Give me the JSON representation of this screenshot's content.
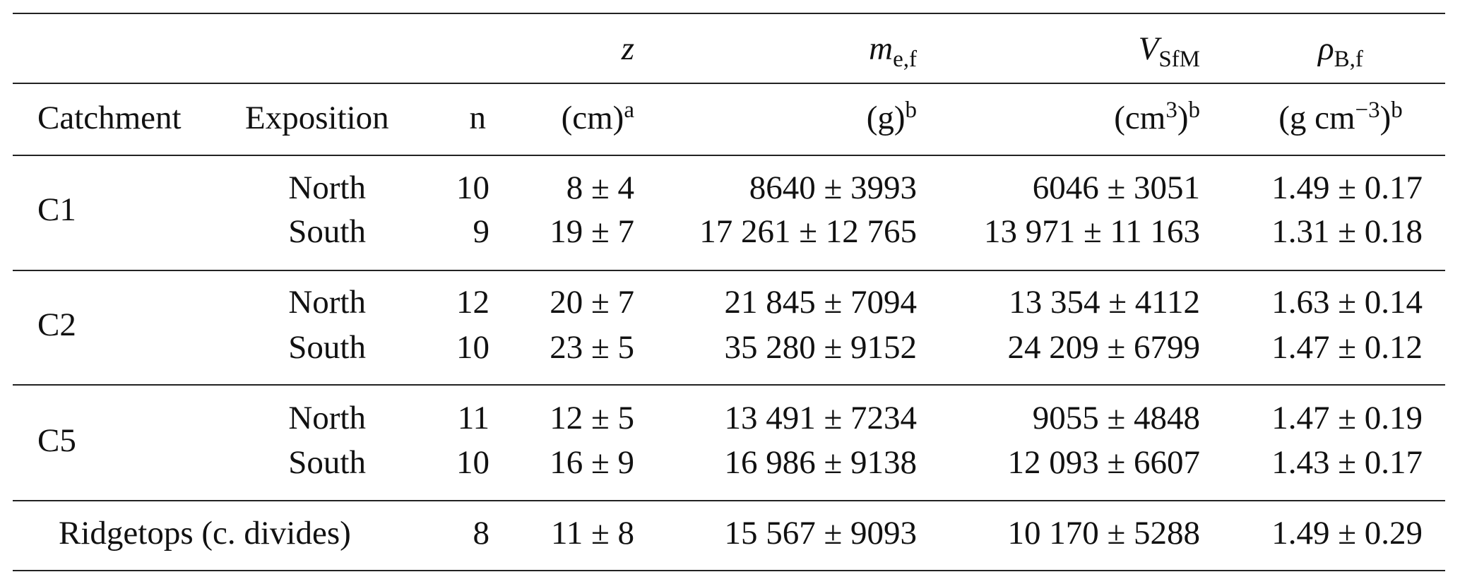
{
  "header": {
    "labels": [
      "Catchment",
      "Exposition",
      "n"
    ],
    "symbols": [
      {
        "base": "z"
      },
      {
        "base": "m",
        "sub": "e,f"
      },
      {
        "base": "V",
        "sub": "SfM"
      },
      {
        "base": "ρ",
        "sub": "B,f"
      }
    ],
    "units": [
      {
        "base": "(cm)",
        "note": "a"
      },
      {
        "base": "(g)",
        "note": "b"
      },
      {
        "base": "(cm",
        "sup": "3",
        "tail": ")",
        "note": "b"
      },
      {
        "base": "(g cm",
        "sup": "−3",
        "tail": ")",
        "note": "b"
      }
    ]
  },
  "groups": [
    {
      "catchment": "C1",
      "rows": [
        [
          "North",
          10,
          "8 ± 4",
          "8640 ± 3993",
          "6046 ± 3051",
          "1.49 ± 0.17"
        ],
        [
          "South",
          9,
          "19 ± 7",
          "17 261 ± 12 765",
          "13 971 ± 11 163",
          "1.31 ± 0.18"
        ]
      ]
    },
    {
      "catchment": "C2",
      "rows": [
        [
          "North",
          12,
          "20 ± 7",
          "21 845 ± 7094",
          "13 354 ± 4112",
          "1.63 ± 0.14"
        ],
        [
          "South",
          10,
          "23 ± 5",
          "35 280 ± 9152",
          "24 209 ± 6799",
          "1.47 ± 0.12"
        ]
      ]
    },
    {
      "catchment": "C5",
      "rows": [
        [
          "North",
          11,
          "12 ± 5",
          "13 491 ± 7234",
          "9055 ± 4848",
          "1.47 ± 0.19"
        ],
        [
          "South",
          10,
          "16 ± 9",
          "16 986 ± 9138",
          "12 093 ± 6607",
          "1.43 ± 0.17"
        ]
      ]
    }
  ],
  "footer_row": {
    "label": "Ridgetops (c. divides)",
    "cells": [
      8,
      "11 ± 8",
      "15 567 ± 9093",
      "10 170 ± 5288",
      "1.49 ± 0.29"
    ]
  }
}
